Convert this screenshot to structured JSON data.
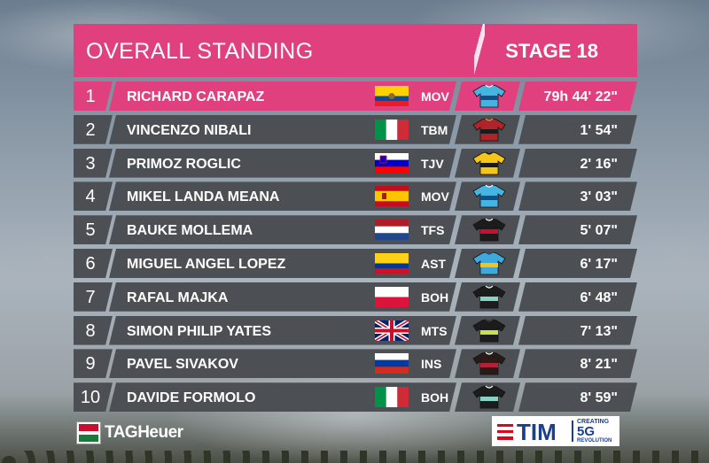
{
  "header": {
    "title": "OVERALL STANDING",
    "stage": "STAGE 18"
  },
  "riders": [
    {
      "rank": "1",
      "name": "RICHARD CARAPAZ",
      "team": "MOV",
      "time": "79h 44' 22\"",
      "flag": "ecuador",
      "jersey": "movistar"
    },
    {
      "rank": "2",
      "name": "VINCENZO NIBALI",
      "team": "TBM",
      "time": "1' 54\"",
      "flag": "italy",
      "jersey": "bahrain"
    },
    {
      "rank": "3",
      "name": "PRIMOZ ROGLIC",
      "team": "TJV",
      "time": "2' 16\"",
      "flag": "slovenia",
      "jersey": "jumbo"
    },
    {
      "rank": "4",
      "name": "MIKEL LANDA MEANA",
      "team": "MOV",
      "time": "3' 03\"",
      "flag": "spain",
      "jersey": "movistar"
    },
    {
      "rank": "5",
      "name": "BAUKE MOLLEMA",
      "team": "TFS",
      "time": "5' 07\"",
      "flag": "netherlands",
      "jersey": "trek"
    },
    {
      "rank": "6",
      "name": "MIGUEL ANGEL LOPEZ",
      "team": "AST",
      "time": "6' 17\"",
      "flag": "colombia",
      "jersey": "astana"
    },
    {
      "rank": "7",
      "name": "RAFAL MAJKA",
      "team": "BOH",
      "time": "6' 48\"",
      "flag": "poland",
      "jersey": "bora"
    },
    {
      "rank": "8",
      "name": "SIMON PHILIP YATES",
      "team": "MTS",
      "time": "7' 13\"",
      "flag": "uk",
      "jersey": "mitchelton"
    },
    {
      "rank": "9",
      "name": "PAVEL SIVAKOV",
      "team": "INS",
      "time": "8' 21\"",
      "flag": "russia",
      "jersey": "ineos"
    },
    {
      "rank": "10",
      "name": "DAVIDE FORMOLO",
      "team": "BOH",
      "time": "8' 59\"",
      "flag": "italy",
      "jersey": "bora"
    }
  ],
  "sponsors": {
    "left": "TAGHeuer",
    "right": {
      "brand": "TIM",
      "creating": "CREATING",
      "fiveg": "5G",
      "revolution": "REVOLUTION"
    }
  },
  "colors": {
    "accent": "#e1407e",
    "row": "#4c4f53",
    "text": "#ffffff"
  }
}
